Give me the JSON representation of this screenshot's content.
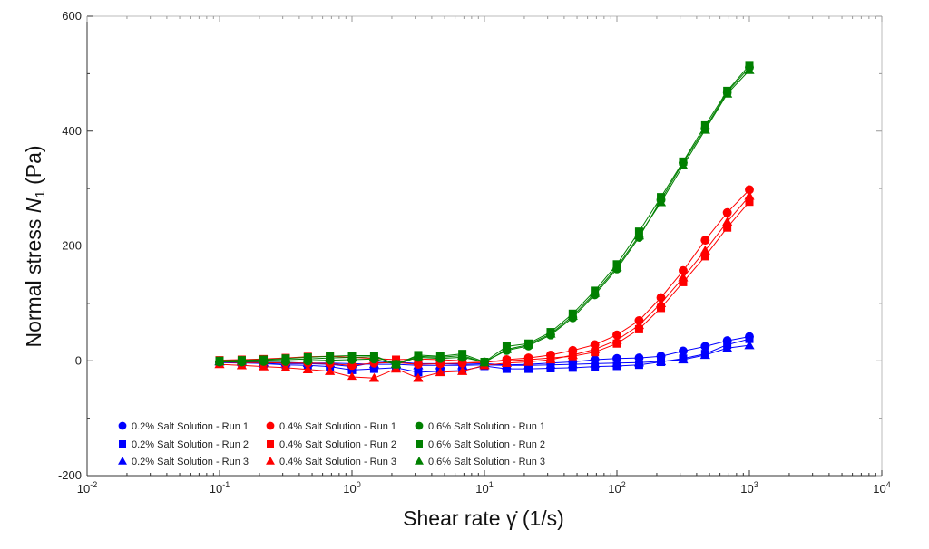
{
  "chart_data": {
    "type": "scatter",
    "xscale": "log",
    "xlim": [
      0.01,
      10000
    ],
    "ylim": [
      -200,
      600
    ],
    "xticks": [
      {
        "value": 0.01,
        "base": "10",
        "exp": "-2"
      },
      {
        "value": 0.1,
        "base": "10",
        "exp": "-1"
      },
      {
        "value": 1,
        "base": "10",
        "exp": "0"
      },
      {
        "value": 10,
        "base": "10",
        "exp": "1"
      },
      {
        "value": 100,
        "base": "10",
        "exp": "2"
      },
      {
        "value": 1000,
        "base": "10",
        "exp": "3"
      },
      {
        "value": 10000,
        "base": "10",
        "exp": "4"
      }
    ],
    "yticks": [
      -200,
      0,
      200,
      400,
      600
    ],
    "xlabel": "Shear rate γ̇ (1/s)",
    "ylabel_prefix": "Normal stress ",
    "ylabel_symbol": "N",
    "ylabel_sub": "1",
    "ylabel_suffix": " (Pa)",
    "grid": false,
    "legend_position": "bottom-left",
    "x": [
      0.1,
      0.147,
      0.215,
      0.316,
      0.464,
      0.681,
      1.0,
      1.47,
      2.15,
      3.16,
      4.64,
      6.81,
      10.0,
      14.7,
      21.5,
      31.6,
      46.4,
      68.1,
      100,
      147,
      215,
      316,
      464,
      681,
      1000
    ],
    "series": [
      {
        "name": "0.2% Salt Solution - Run 1",
        "color": "#0000ff",
        "marker": "circle",
        "values": [
          -3,
          -4,
          -4,
          -5,
          -5,
          -6,
          -10,
          -3,
          -2,
          -5,
          -5,
          -6,
          -5,
          -7,
          -6,
          -4,
          -2,
          2,
          4,
          5,
          8,
          17,
          25,
          35,
          42
        ]
      },
      {
        "name": "0.2% Salt Solution - Run 2",
        "color": "#0000ff",
        "marker": "square",
        "values": [
          -2,
          -3,
          -5,
          -7,
          -8,
          -10,
          -16,
          -14,
          -12,
          -20,
          -18,
          -17,
          -9,
          -14,
          -14,
          -13,
          -12,
          -10,
          -9,
          -7,
          -2,
          4,
          12,
          28,
          38
        ]
      },
      {
        "name": "0.2% Salt Solution - Run 3",
        "color": "#0000ff",
        "marker": "triangle",
        "values": [
          -1,
          -2,
          -3,
          -3,
          -4,
          -4,
          -5,
          -6,
          -6,
          -8,
          -8,
          -8,
          -7,
          -8,
          -8,
          -7,
          -6,
          -5,
          -4,
          -3,
          -1,
          2,
          10,
          22,
          27
        ]
      },
      {
        "name": "0.4% Salt Solution - Run 1",
        "color": "#ff0000",
        "marker": "circle",
        "values": [
          -2,
          -3,
          -3,
          -4,
          -4,
          -5,
          -8,
          -4,
          -3,
          -6,
          -5,
          -4,
          -3,
          2,
          5,
          10,
          18,
          28,
          45,
          70,
          110,
          157,
          210,
          258,
          298
        ]
      },
      {
        "name": "0.4% Salt Solution - Run 2",
        "color": "#ff0000",
        "marker": "square",
        "values": [
          1,
          2,
          3,
          5,
          7,
          8,
          6,
          4,
          2,
          3,
          2,
          0,
          -2,
          0,
          2,
          5,
          8,
          15,
          30,
          55,
          92,
          137,
          182,
          232,
          277
        ]
      },
      {
        "name": "0.4% Salt Solution - Run 3",
        "color": "#ff0000",
        "marker": "triangle",
        "values": [
          -6,
          -8,
          -10,
          -12,
          -15,
          -18,
          -28,
          -30,
          -14,
          -30,
          -20,
          -18,
          -8,
          -4,
          -2,
          2,
          10,
          20,
          36,
          62,
          100,
          145,
          192,
          242,
          287
        ]
      },
      {
        "name": "0.6% Salt Solution - Run 1",
        "color": "#008000",
        "marker": "circle",
        "values": [
          -2,
          -2,
          -1,
          -1,
          0,
          1,
          2,
          3,
          -6,
          6,
          4,
          6,
          -2,
          18,
          26,
          45,
          75,
          115,
          160,
          215,
          280,
          345,
          405,
          468,
          511
        ]
      },
      {
        "name": "0.6% Salt Solution - Run 2",
        "color": "#008000",
        "marker": "square",
        "values": [
          0,
          1,
          2,
          4,
          6,
          8,
          9,
          9,
          -6,
          10,
          8,
          12,
          -2,
          25,
          30,
          50,
          82,
          122,
          168,
          225,
          285,
          347,
          410,
          470,
          515
        ]
      },
      {
        "name": "0.6% Salt Solution - Run 3",
        "color": "#008000",
        "marker": "triangle",
        "values": [
          -1,
          0,
          1,
          2,
          3,
          5,
          6,
          7,
          -5,
          8,
          6,
          9,
          -3,
          20,
          28,
          47,
          78,
          118,
          163,
          218,
          276,
          340,
          402,
          465,
          506
        ]
      }
    ]
  }
}
